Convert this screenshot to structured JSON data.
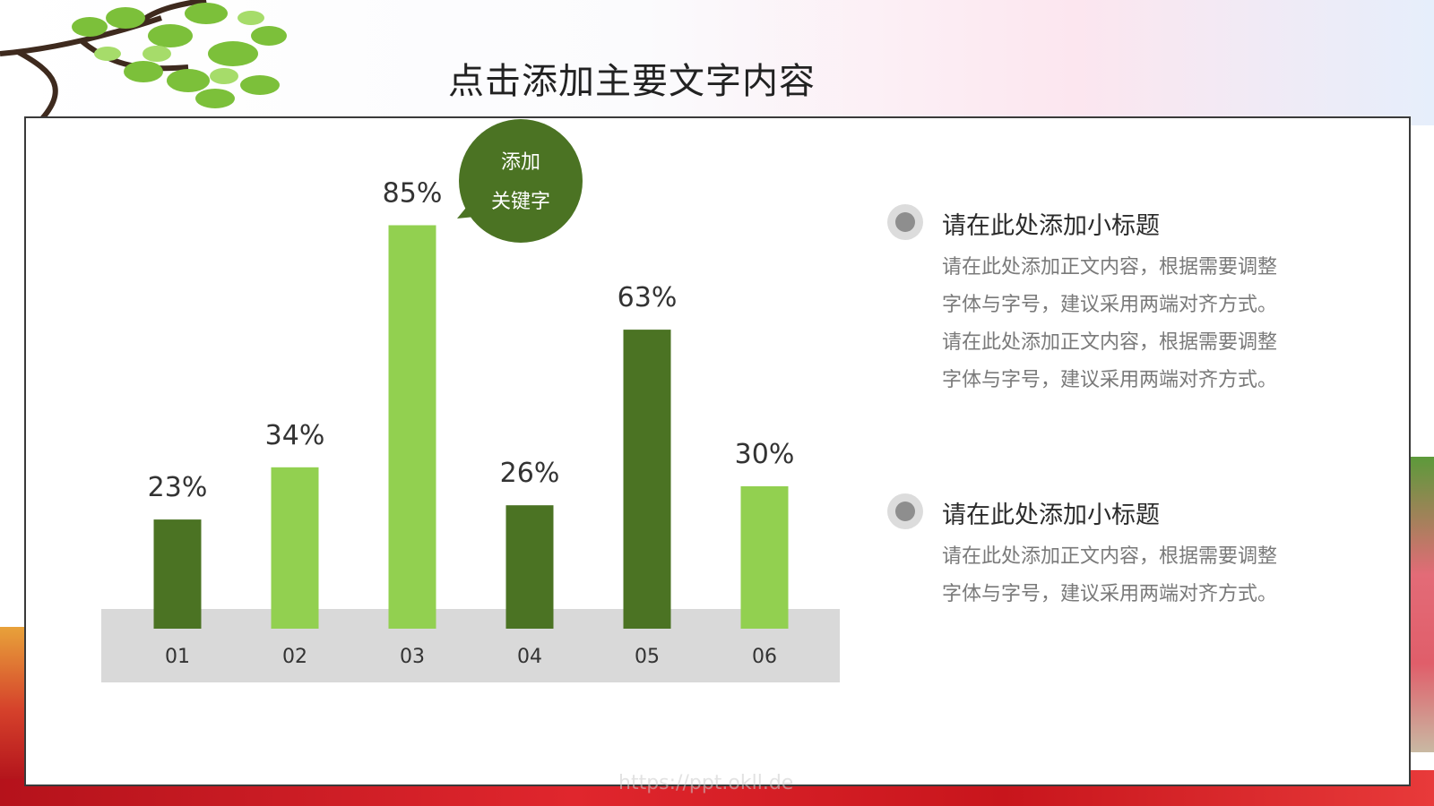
{
  "slide": {
    "title": "点击添加主要文字内容",
    "watermark": "https://ppt.okll.de"
  },
  "callout": {
    "line1": "添加",
    "line2": "关键字",
    "color": "#4b7323"
  },
  "chart_data": {
    "type": "bar",
    "categories": [
      "01",
      "02",
      "03",
      "04",
      "05",
      "06"
    ],
    "values": [
      23,
      34,
      85,
      26,
      63,
      30
    ],
    "value_labels": [
      "23%",
      "34%",
      "85%",
      "26%",
      "63%",
      "30%"
    ],
    "colors": [
      "#4b7323",
      "#92d050",
      "#92d050",
      "#4b7323",
      "#4b7323",
      "#92d050"
    ],
    "title": "",
    "xlabel": "",
    "ylabel": "",
    "ylim": [
      0,
      100
    ],
    "grid": false,
    "axis_band_color": "#d9d9d9"
  },
  "items": [
    {
      "title": "请在此处添加小标题",
      "body": "请在此处添加正文内容，根据需要调整字体与字号，建议采用两端对齐方式。请在此处添加正文内容，根据需要调整字体与字号，建议采用两端对齐方式。"
    },
    {
      "title": "请在此处添加小标题",
      "body": "请在此处添加正文内容，根据需要调整字体与字号，建议采用两端对齐方式。"
    }
  ]
}
